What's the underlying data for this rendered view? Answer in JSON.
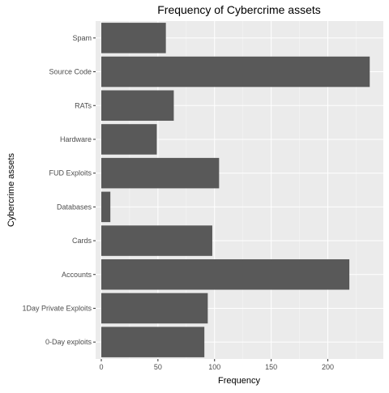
{
  "chart_data": {
    "type": "bar",
    "orientation": "horizontal",
    "title": "Frequency of Cybercrime assets",
    "xlabel": "Frequency",
    "ylabel": "Cybercrime assets",
    "categories": [
      "0-Day exploits",
      "1Day Private Exploits",
      "Accounts",
      "Cards",
      "Databases",
      "FUD Exploits",
      "Hardware",
      "RATs",
      "Source Code",
      "Spam"
    ],
    "values": [
      91,
      94,
      219,
      98,
      8,
      104,
      49,
      64,
      237,
      57
    ],
    "xlim": [
      -5,
      249
    ],
    "xticks": [
      0,
      50,
      100,
      150,
      200
    ],
    "grid": true,
    "legend": "none",
    "colors": {
      "bar": "#595959",
      "panel": "#ebebeb",
      "grid_major": "#ffffff",
      "tick_text": "#4d4d4d"
    }
  }
}
